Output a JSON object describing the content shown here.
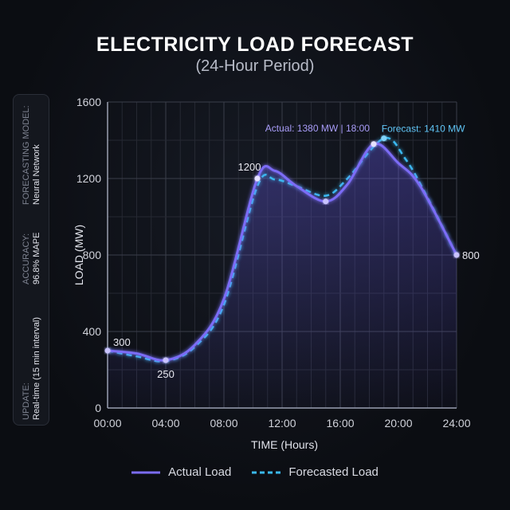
{
  "chart_data": {
    "type": "line",
    "title": "ELECTRICITY LOAD FORECAST",
    "subtitle": "(24-Hour Period)",
    "xlabel": "TIME (Hours)",
    "ylabel": "LOAD (MW)",
    "xlim": [
      0,
      24
    ],
    "ylim": [
      0,
      1600
    ],
    "x_ticks": [
      "00:00",
      "04:00",
      "08:00",
      "12:00",
      "16:00",
      "20:00",
      "24:00"
    ],
    "y_ticks": [
      "0",
      "400",
      "800",
      "1200",
      "1600"
    ],
    "grid": true,
    "legend_placement": "bottom",
    "series": [
      {
        "name": "Actual Load",
        "color": "#7b6cf6",
        "style": "solid",
        "x": [
          0,
          2,
          4,
          6,
          8,
          10.3,
          11.5,
          13,
          15,
          16.5,
          18.3,
          20,
          21.5,
          24
        ],
        "y": [
          300,
          285,
          250,
          330,
          570,
          1200,
          1240,
          1160,
          1080,
          1170,
          1380,
          1280,
          1160,
          800
        ]
      },
      {
        "name": "Forecasted Load",
        "color": "#3ab8f0",
        "style": "dashed",
        "x": [
          0,
          2,
          4,
          6,
          8,
          10.3,
          11.5,
          13,
          15,
          16.5,
          19,
          20.5,
          22,
          24
        ],
        "y": [
          300,
          270,
          245,
          320,
          540,
          1160,
          1195,
          1160,
          1110,
          1200,
          1410,
          1300,
          1100,
          800
        ]
      }
    ],
    "annotations": [
      {
        "text": "300",
        "x": 0,
        "y": 300
      },
      {
        "text": "250",
        "x": 4,
        "y": 250
      },
      {
        "text": "1200",
        "x": 10.3,
        "y": 1200
      },
      {
        "text": "800",
        "x": 24,
        "y": 800
      },
      {
        "text": "Actual: 1380 MW | 18:00",
        "x": 18.3,
        "y": 1380
      },
      {
        "text": "Forecast: 1410 MW",
        "x": 19,
        "y": 1410
      }
    ]
  },
  "info_panel": [
    {
      "label": "FORECASTING MODEL:",
      "value": "Neural Network"
    },
    {
      "label": "ACCURACY:",
      "value": "96.8% MAPE"
    },
    {
      "label": "UPDATE:",
      "value": "Real-time (15 min interval)"
    }
  ]
}
